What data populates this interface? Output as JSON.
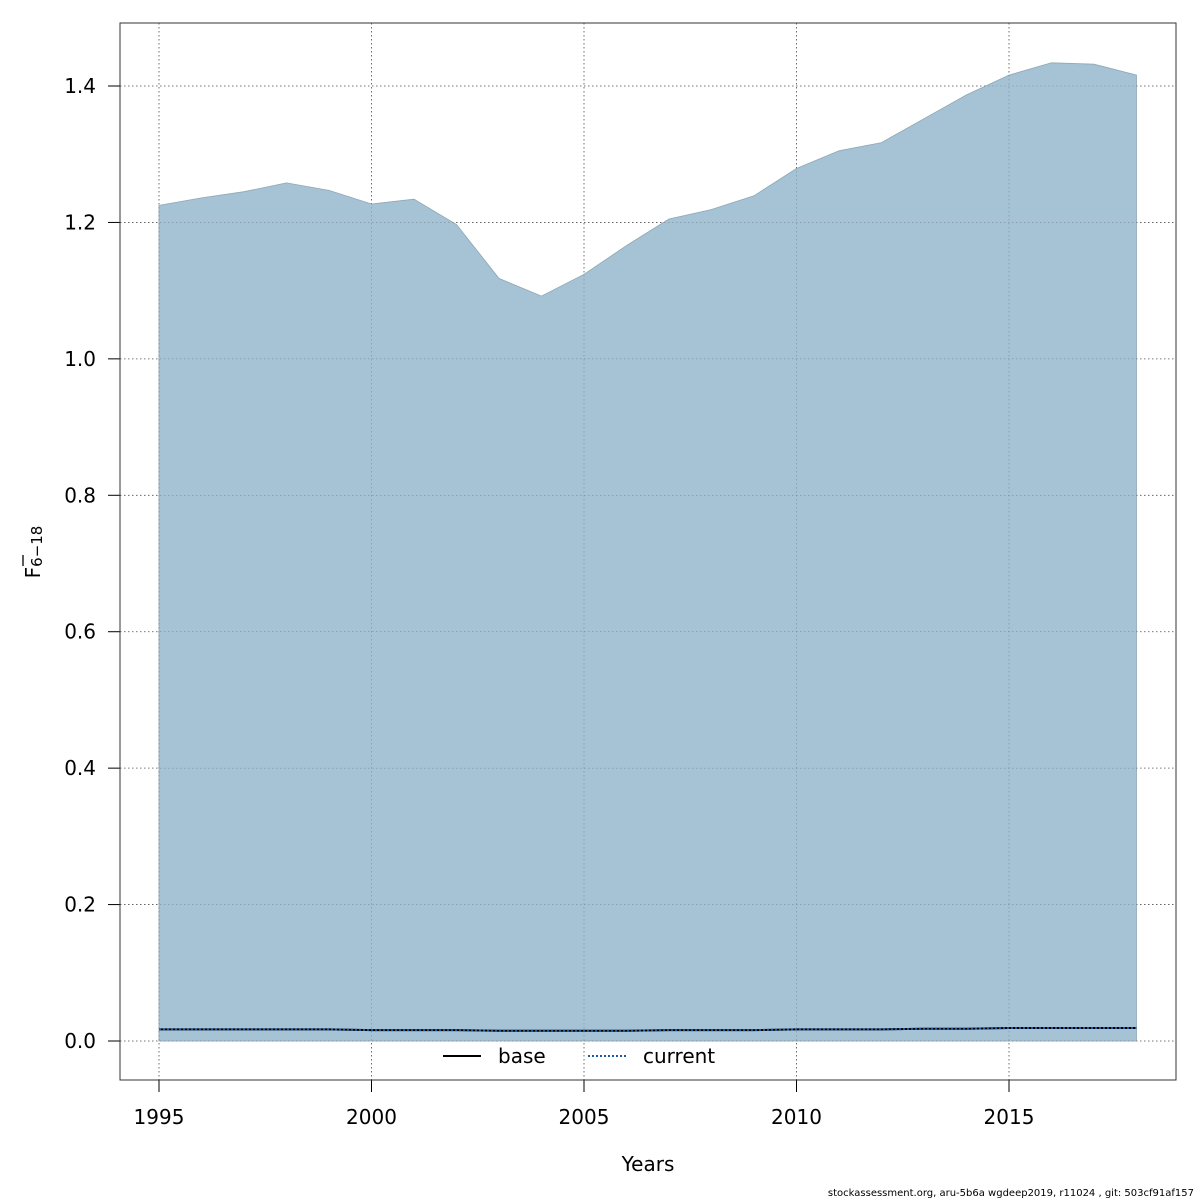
{
  "chart_data": {
    "type": "area",
    "xlabel": "Years",
    "ylabel": "F",
    "ylabel_sub": "6−18",
    "xlim": [
      1993.2,
      2018.0
    ],
    "ylim": [
      -0.057,
      1.49
    ],
    "x_ticks": [
      "1995",
      "2000",
      "2005",
      "2010",
      "2015"
    ],
    "y_ticks": [
      "0.0",
      "0.2",
      "0.4",
      "0.6",
      "0.8",
      "1.0",
      "1.2",
      "1.4"
    ],
    "grid": true,
    "legend_position": "bottom-center",
    "band": {
      "x": [
        1995,
        1996,
        1997,
        1998,
        1999,
        2000,
        2001,
        2002,
        2003,
        2004,
        2005,
        2006,
        2007,
        2008,
        2009,
        2010,
        2011,
        2012,
        2013,
        2014,
        2015,
        2016,
        2017,
        2018
      ],
      "lower": [
        0,
        0,
        0,
        0,
        0,
        0,
        0,
        0,
        0,
        0,
        0,
        0,
        0,
        0,
        0,
        0,
        0,
        0,
        0,
        0,
        0,
        0,
        0,
        0
      ],
      "upper": [
        1.225,
        1.236,
        1.245,
        1.258,
        1.247,
        1.227,
        1.234,
        1.197,
        1.118,
        1.092,
        1.124,
        1.166,
        1.205,
        1.219,
        1.239,
        1.279,
        1.305,
        1.317,
        1.352,
        1.387,
        1.416,
        1.434,
        1.432,
        1.416
      ],
      "color": "#a5c3d4"
    },
    "series": [
      {
        "name": "base",
        "style": "solid",
        "color": "#000000",
        "x": [
          1995,
          1996,
          1997,
          1998,
          1999,
          2000,
          2001,
          2002,
          2003,
          2004,
          2005,
          2006,
          2007,
          2008,
          2009,
          2010,
          2011,
          2012,
          2013,
          2014,
          2015,
          2016,
          2017,
          2018
        ],
        "y": [
          0.017,
          0.017,
          0.017,
          0.017,
          0.017,
          0.016,
          0.016,
          0.016,
          0.015,
          0.015,
          0.015,
          0.015,
          0.016,
          0.016,
          0.016,
          0.017,
          0.017,
          0.017,
          0.018,
          0.018,
          0.019,
          0.019,
          0.019,
          0.019
        ]
      },
      {
        "name": "current",
        "style": "dotted",
        "color": "#1f5aa0",
        "x": [
          1995,
          1996,
          1997,
          1998,
          1999,
          2000,
          2001,
          2002,
          2003,
          2004,
          2005,
          2006,
          2007,
          2008,
          2009,
          2010,
          2011,
          2012,
          2013,
          2014,
          2015,
          2016,
          2017,
          2018
        ],
        "y": [
          0.017,
          0.017,
          0.017,
          0.017,
          0.017,
          0.016,
          0.016,
          0.016,
          0.015,
          0.015,
          0.015,
          0.015,
          0.016,
          0.016,
          0.016,
          0.017,
          0.017,
          0.017,
          0.018,
          0.018,
          0.019,
          0.019,
          0.019,
          0.019
        ]
      }
    ]
  },
  "footer": "stockassessment.org, aru-5b6a  wgdeep2019, r11024 , git: 503cf91af157"
}
